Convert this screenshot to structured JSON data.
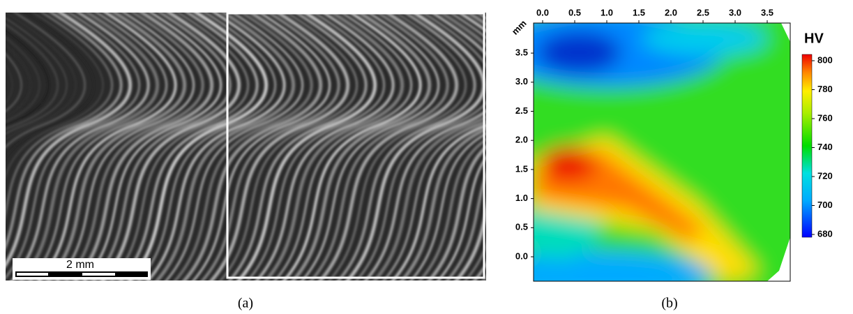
{
  "panels": [
    {
      "label": "(a)",
      "scale_bar": "2 mm"
    },
    {
      "label": "(b)",
      "axis_unit": "mm",
      "xticks": [
        {
          "value": 0,
          "label": "0.0"
        },
        {
          "value": 0.5,
          "label": "0.5"
        },
        {
          "value": 1,
          "label": "1.0"
        },
        {
          "value": 1.5,
          "label": "1.5"
        },
        {
          "value": 2,
          "label": "2.0"
        },
        {
          "value": 2.5,
          "label": "2.5"
        },
        {
          "value": 3,
          "label": "3.0"
        },
        {
          "value": 3.5,
          "label": "3.5"
        }
      ],
      "yticks": [
        {
          "value": 0,
          "label": "0.0"
        },
        {
          "value": 0.5,
          "label": "0.5"
        },
        {
          "value": 1,
          "label": "1.0"
        },
        {
          "value": 1.5,
          "label": "1.5"
        },
        {
          "value": 2,
          "label": "2.0"
        },
        {
          "value": 2.5,
          "label": "2.5"
        },
        {
          "value": 3,
          "label": "3.0"
        },
        {
          "value": 3.5,
          "label": "3.5"
        }
      ],
      "colorbar_title": "HV",
      "colorbar_ticks": [
        680,
        700,
        720,
        740,
        760,
        780,
        800
      ]
    }
  ]
}
